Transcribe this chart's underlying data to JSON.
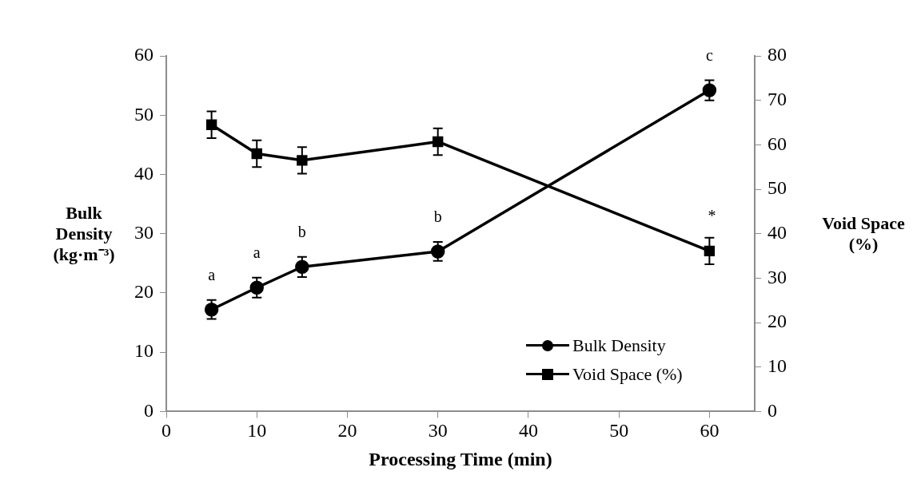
{
  "chart_data": {
    "type": "line",
    "xlabel": "Processing Time (min)",
    "ylabel": "Bulk Density (kg·m⁻³)",
    "y2label": "Void Space (%)",
    "x": [
      5,
      10,
      15,
      30,
      60
    ],
    "series": [
      {
        "name": "Bulk Density",
        "color": "#000000",
        "marker": "circle",
        "values": [
          17.2,
          20.9,
          24.4,
          27.0,
          54.2
        ],
        "errors": [
          1.6,
          1.7,
          1.7,
          1.6,
          1.7
        ]
      },
      {
        "name": "Void Space (%)",
        "color": "#000000",
        "marker": "square",
        "axis": "y2",
        "values": [
          64.5,
          58.0,
          56.5,
          60.7,
          36.1
        ],
        "errors": [
          3.0,
          3.0,
          3.0,
          3.0,
          3.0
        ]
      }
    ],
    "xlim": [
      0,
      65
    ],
    "xticks": [
      0,
      10,
      20,
      30,
      40,
      50,
      60
    ],
    "ylim": [
      0,
      60
    ],
    "yticks": [
      0,
      10,
      20,
      30,
      40,
      50,
      60
    ],
    "y2lim": [
      0,
      80
    ],
    "y2ticks": [
      0,
      10,
      20,
      30,
      40,
      50,
      60,
      70,
      80
    ],
    "annotations": [
      {
        "text": "a",
        "x": 5,
        "y": 17.2
      },
      {
        "text": "a",
        "x": 10,
        "y": 20.9
      },
      {
        "text": "b",
        "x": 15,
        "y": 24.4
      },
      {
        "text": "b",
        "x": 30,
        "y": 27.0
      },
      {
        "text": "c",
        "x": 60,
        "y": 54.2
      },
      "*"
    ],
    "grid": false,
    "legend": "bottom right",
    "line_style": "solid"
  }
}
